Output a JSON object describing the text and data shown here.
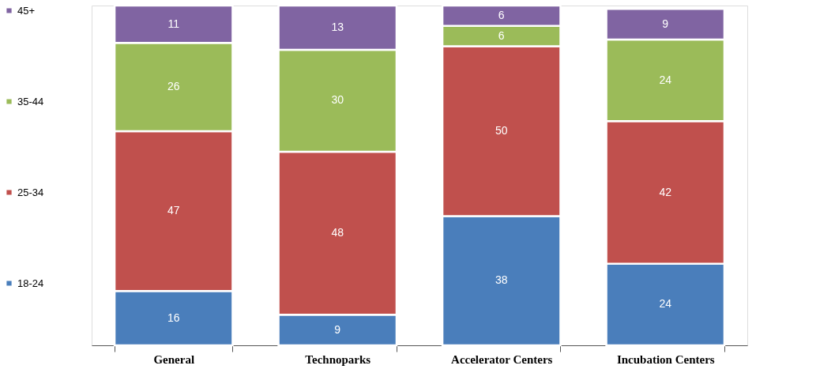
{
  "chart_data": {
    "type": "bar",
    "stacked": true,
    "categories": [
      "General",
      "Technoparks",
      "Accelerator Centers",
      "Incubation Centers"
    ],
    "series": [
      {
        "name": "18-24",
        "color": "#4a7ebb",
        "values": [
          16,
          9,
          38,
          24
        ]
      },
      {
        "name": "25-34",
        "color": "#c0504d",
        "values": [
          47,
          48,
          50,
          42
        ]
      },
      {
        "name": "35-44",
        "color": "#9bbb59",
        "values": [
          26,
          30,
          6,
          24
        ]
      },
      {
        "name": "45+",
        "color": "#8064a2",
        "values": [
          11,
          13,
          6,
          9
        ]
      }
    ],
    "ylim": [
      0,
      100
    ],
    "data_labels": true,
    "legend": "left",
    "tick_labels": "x",
    "grid": false
  }
}
